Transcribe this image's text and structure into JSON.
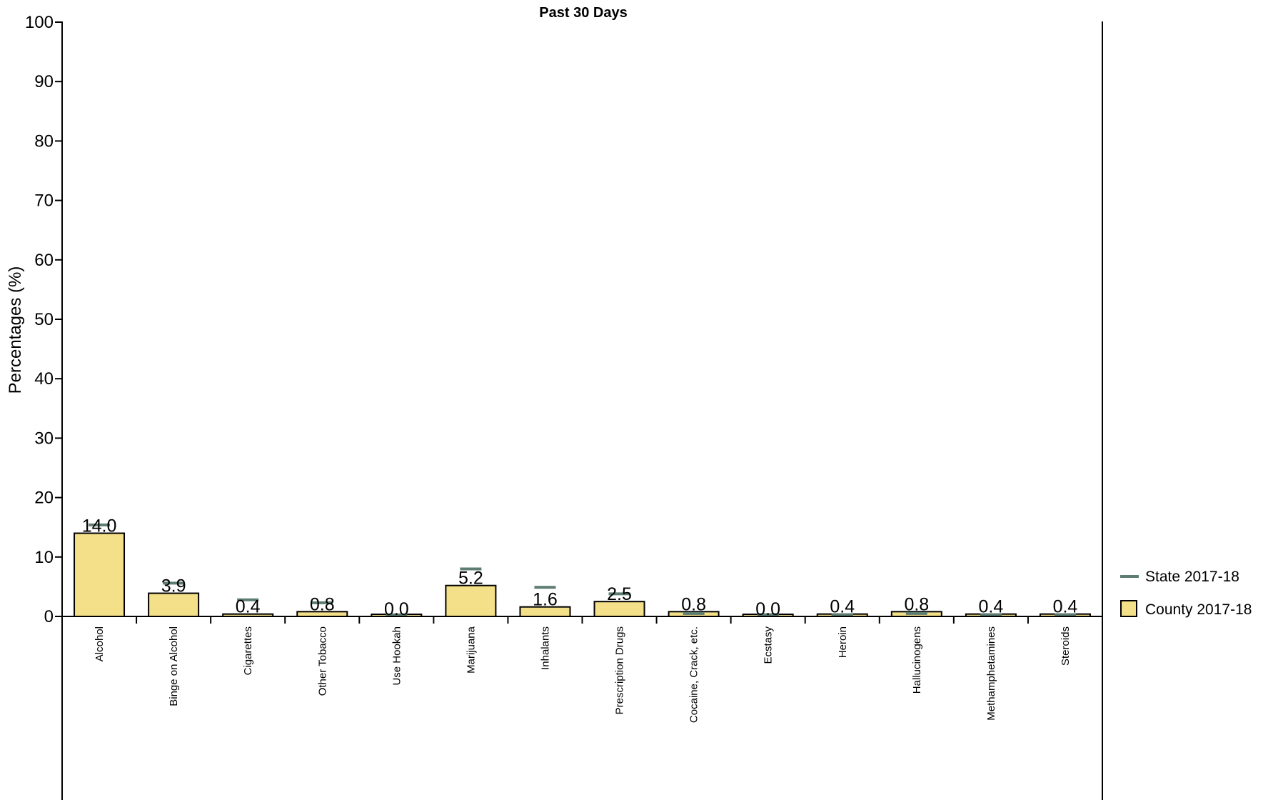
{
  "chart_data": {
    "type": "bar",
    "title": "Past 30 Days",
    "ylabel": "Percentages (%)",
    "xlabel": "",
    "ylim": [
      0,
      100
    ],
    "yticks": [
      0,
      10,
      20,
      30,
      40,
      50,
      60,
      70,
      80,
      90,
      100
    ],
    "grid": false,
    "legend_position": "right",
    "categories": [
      "Alcohol",
      "Binge on Alcohol",
      "Cigarettes",
      "Other Tobacco",
      "Use Hookah",
      "Marijuana",
      "Inhalants",
      "Prescription Drugs",
      "Cocaine, Crack, etc.",
      "Ecstasy",
      "Heroin",
      "Hallucinogens",
      "Methamphetamines",
      "Steroids"
    ],
    "series": [
      {
        "name": "County 2017-18",
        "kind": "bar",
        "color": "#f5e08a",
        "values": [
          14.0,
          3.9,
          0.4,
          0.8,
          0.0,
          5.2,
          1.6,
          2.5,
          0.8,
          0.0,
          0.4,
          0.8,
          0.4,
          0.4
        ],
        "labels": [
          "14.0",
          "3.9",
          "0.4",
          "0.8",
          "0.0",
          "5.2",
          "1.6",
          "2.5",
          "0.8",
          "0.0",
          "0.4",
          "0.8",
          "0.4",
          "0.4"
        ]
      },
      {
        "name": "State 2017-18",
        "kind": "marker",
        "color": "#5e7d72",
        "values": [
          15.4,
          5.6,
          2.8,
          2.3,
          0.2,
          8.0,
          4.9,
          3.8,
          0.5,
          0.3,
          0.3,
          0.5,
          0.3,
          0.3
        ]
      }
    ]
  }
}
